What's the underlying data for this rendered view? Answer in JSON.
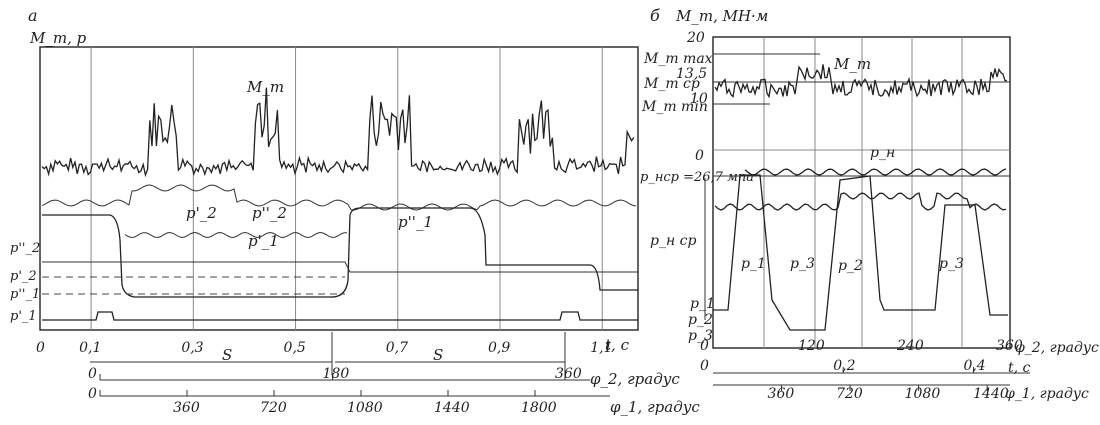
{
  "panel_a": {
    "letter": "a",
    "ylabel": "M_т, p",
    "curve_labels": {
      "mt": "M_т",
      "p2p": "p'_2",
      "p2pp": "p''_2",
      "p1p": "p'_1",
      "p1pp": "p''_1"
    },
    "left_labels": [
      "p''_2",
      "p'_2",
      "p''_1",
      "p'_1"
    ],
    "s_labels": [
      "S",
      "S"
    ],
    "t_unit": "t, c",
    "phi2_label": "φ_2, градус",
    "phi1_label": "φ_1, градус"
  },
  "panel_b": {
    "letter": "б",
    "ylabel": "M_т, МН·м",
    "mt_labels": [
      "M_т max",
      "M_т ср",
      "M_т min"
    ],
    "curve_label_mt": "M_т",
    "pn_label": "p_н",
    "pnsr_label": "p_нср =26,7 мпа",
    "pnsr_axis": "p_н ср",
    "p_labels": [
      "p_1",
      "p_3",
      "p_2",
      "p_3"
    ],
    "left_labels": [
      "p_1",
      "p_2",
      "p_3"
    ],
    "zero_label": "0",
    "t_unit": "t, c",
    "phi2_label": "φ_2, градус",
    "phi1_label": "φ_1, градус"
  },
  "chart_data": [
    {
      "type": "line",
      "title": "",
      "xlabel": "t, c",
      "x_ticks": [
        0,
        0.1,
        0.3,
        0.5,
        0.7,
        0.9,
        1.1
      ],
      "x_tick_labels": [
        "0",
        "0,1",
        "0,3",
        "0,5",
        "0,7",
        "0,9",
        "1,1"
      ],
      "xlim": [
        0,
        1.17
      ],
      "phi2_ticks": [
        0,
        180,
        360
      ],
      "phi1_ticks": [
        0,
        360,
        720,
        1080,
        1440,
        1800
      ],
      "grid": true,
      "series": [
        {
          "name": "M_т",
          "x": [
            0,
            0.1,
            0.15,
            0.25,
            0.36,
            0.4,
            0.5,
            0.55,
            0.65,
            0.75,
            0.85,
            0.9,
            0.95,
            1.05,
            1.1,
            1.17
          ],
          "values": [
            0.72,
            0.66,
            0.8,
            0.85,
            0.68,
            0.9,
            0.78,
            0.62,
            0.88,
            0.92,
            0.66,
            0.82,
            0.7,
            0.66,
            0.84,
            0.88
          ]
        },
        {
          "name": "p''_2",
          "x": [
            0,
            0.12,
            0.16,
            0.35,
            0.36,
            0.55,
            0.56,
            0.8,
            0.82,
            1.17
          ],
          "values": [
            0.56,
            0.56,
            0.6,
            0.6,
            0.56,
            0.56,
            0.6,
            0.6,
            0.56,
            0.56
          ]
        },
        {
          "name": "p'_1",
          "x": [
            0,
            0.12,
            0.13,
            0.35,
            0.36,
            0.55,
            0.58,
            0.8,
            0.82,
            1.17
          ],
          "values": [
            0.5,
            0.5,
            0.3,
            0.3,
            0.5,
            0.5,
            0.5,
            0.5,
            0.18,
            0.18
          ]
        },
        {
          "name": "p''_1",
          "x": [
            0,
            0.55,
            0.57,
            0.8,
            0.82,
            1.17
          ],
          "values": [
            0.2,
            0.2,
            0.52,
            0.52,
            0.2,
            0.2
          ]
        },
        {
          "name": "p'_2",
          "x": [
            0,
            0.55,
            0.57,
            1.17
          ],
          "values": [
            0.08,
            0.08,
            0.2,
            0.2
          ]
        }
      ]
    },
    {
      "type": "line",
      "title": "",
      "ylabel": "M_т, МН·м",
      "y_ticks": [
        0,
        10,
        13.5,
        20
      ],
      "y_tick_labels": [
        "0",
        "10",
        "13,5",
        "20"
      ],
      "x_ticks_phi2": [
        0,
        120,
        240,
        360
      ],
      "x_ticks_t": [
        0,
        0.2,
        0.4
      ],
      "x_ticks_phi1": [
        360,
        720,
        1080,
        1440
      ],
      "grid": true,
      "series": [
        {
          "name": "M_т",
          "x": [
            0,
            60,
            120,
            180,
            240,
            300,
            360
          ],
          "values": [
            13.2,
            12.8,
            15.6,
            12.4,
            12.2,
            12.5,
            14.0
          ]
        },
        {
          "name": "p_1",
          "x": [
            0,
            15,
            25,
            70,
            80,
            360
          ],
          "values": [
            3,
            3,
            26,
            26,
            3,
            3
          ]
        },
        {
          "name": "p_2",
          "x": [
            0,
            110,
            120,
            170,
            180,
            360
          ],
          "values": [
            1,
            1,
            26,
            26,
            1,
            1
          ]
        },
        {
          "name": "p_3",
          "x": [
            0,
            60,
            70,
            260,
            270,
            350,
            360
          ],
          "values": [
            2,
            2,
            0,
            0,
            26,
            26,
            2
          ]
        },
        {
          "name": "p_н",
          "x": [
            0,
            360
          ],
          "values": [
            26.7,
            26.7
          ]
        }
      ]
    }
  ]
}
